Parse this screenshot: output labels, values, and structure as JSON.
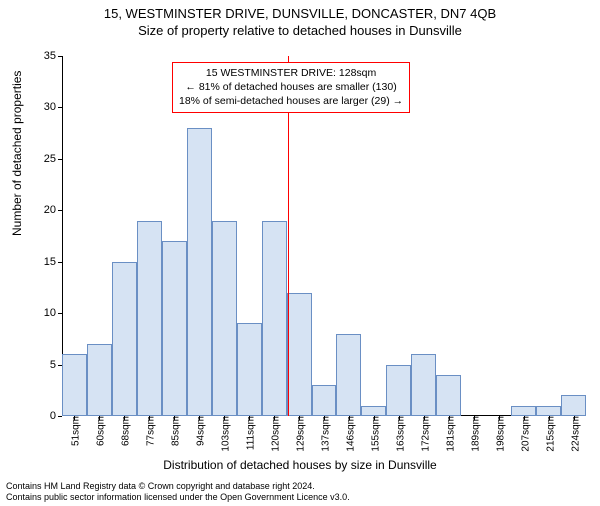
{
  "title_main": "15, WESTMINSTER DRIVE, DUNSVILLE, DONCASTER, DN7 4QB",
  "title_sub": "Size of property relative to detached houses in Dunsville",
  "y_axis_label": "Number of detached properties",
  "x_axis_label": "Distribution of detached houses by size in Dunsville",
  "chart": {
    "type": "histogram",
    "y_max": 35,
    "y_ticks": [
      0,
      5,
      10,
      15,
      20,
      25,
      30,
      35
    ],
    "x_tick_labels": [
      "51sqm",
      "60sqm",
      "68sqm",
      "77sqm",
      "85sqm",
      "94sqm",
      "103sqm",
      "111sqm",
      "120sqm",
      "129sqm",
      "137sqm",
      "146sqm",
      "155sqm",
      "163sqm",
      "172sqm",
      "181sqm",
      "189sqm",
      "198sqm",
      "207sqm",
      "215sqm",
      "224sqm"
    ],
    "bars": [
      6,
      7,
      15,
      19,
      17,
      28,
      19,
      9,
      19,
      12,
      3,
      8,
      1,
      5,
      6,
      4,
      0,
      0,
      1,
      1,
      2
    ],
    "bar_fill": "#d6e3f3",
    "bar_stroke": "#6a8fc4",
    "background_color": "#ffffff",
    "axis_color": "#000000",
    "marker_index": 9,
    "marker_color": "#ff0000",
    "tick_fontsize": 10,
    "label_fontsize": 12,
    "title_fontsize": 13
  },
  "annotation": {
    "line1": "15 WESTMINSTER DRIVE: 128sqm",
    "line2": "← 81% of detached houses are smaller (130)",
    "line3": "18% of semi-detached houses are larger (29) →",
    "border_color": "#ff0000"
  },
  "footer_line1": "Contains HM Land Registry data © Crown copyright and database right 2024.",
  "footer_line2": "Contains public sector information licensed under the Open Government Licence v3.0."
}
